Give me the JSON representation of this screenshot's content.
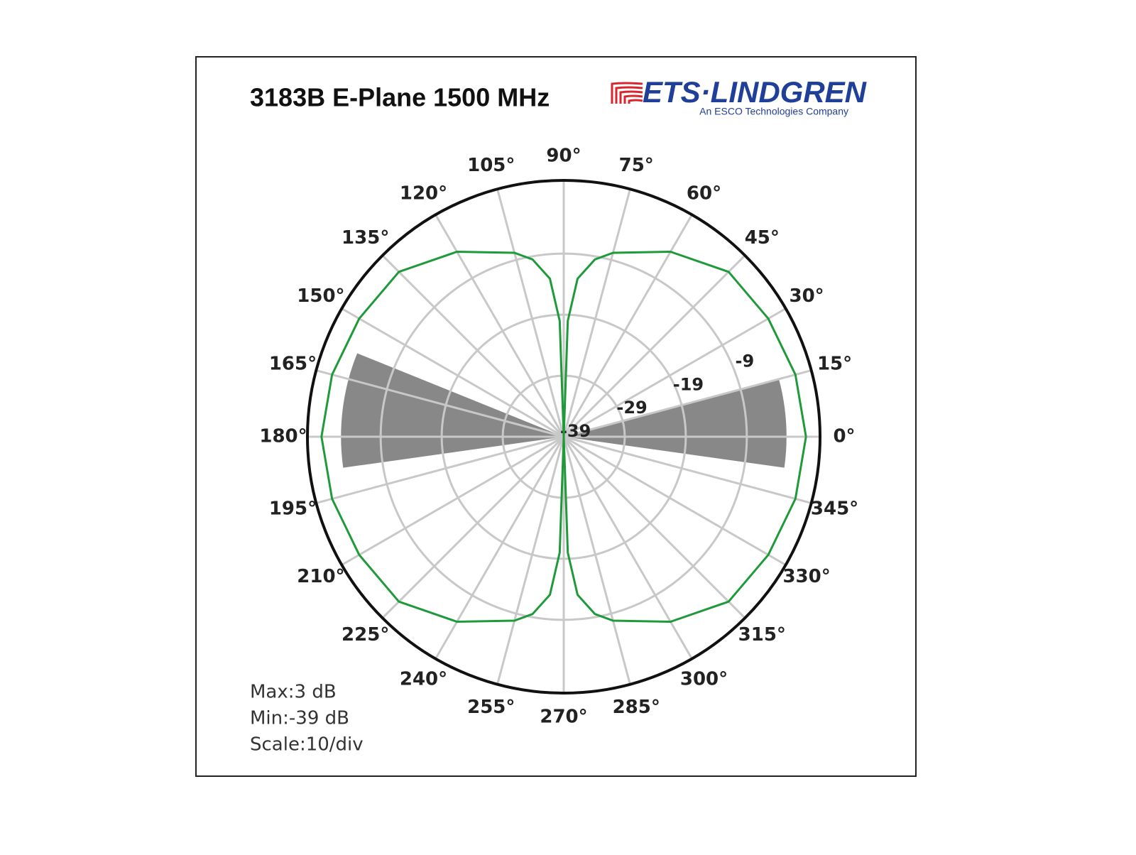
{
  "chart_data": {
    "type": "polar",
    "title": "3183B E-Plane 1500 MHz",
    "logo": {
      "name": "ETS·LINDGREN",
      "tagline": "An ESCO Technologies Company"
    },
    "notes": [
      "Max:3 dB",
      "Min:-39 dB",
      "Scale:10/div"
    ],
    "rlim": [
      -39,
      3
    ],
    "yticks": [
      -39,
      -29,
      -19,
      -9
    ],
    "xticks": [
      {
        "value": 0,
        "label": "0°"
      },
      {
        "value": 15,
        "label": "15°"
      },
      {
        "value": 30,
        "label": "30°"
      },
      {
        "value": 45,
        "label": "45°"
      },
      {
        "value": 60,
        "label": "60°"
      },
      {
        "value": 75,
        "label": "75°"
      },
      {
        "value": 90,
        "label": "90°"
      },
      {
        "value": 105,
        "label": "105°"
      },
      {
        "value": 120,
        "label": "120°"
      },
      {
        "value": 135,
        "label": "135°"
      },
      {
        "value": 150,
        "label": "150°"
      },
      {
        "value": 165,
        "label": "165°"
      },
      {
        "value": 180,
        "label": "180°"
      },
      {
        "value": 195,
        "label": "195°"
      },
      {
        "value": 210,
        "label": "210°"
      },
      {
        "value": 225,
        "label": "225°"
      },
      {
        "value": 240,
        "label": "240°"
      },
      {
        "value": 255,
        "label": "255°"
      },
      {
        "value": 270,
        "label": "270°"
      },
      {
        "value": 285,
        "label": "285°"
      },
      {
        "value": 300,
        "label": "300°"
      },
      {
        "value": 315,
        "label": "315°"
      },
      {
        "value": 330,
        "label": "330°"
      },
      {
        "value": 345,
        "label": "345°"
      }
    ],
    "grid": true,
    "sectors": {
      "color": "#888888",
      "start": [
        -8,
        158
      ],
      "end": [
        15,
        188
      ],
      "values": [
        -2.5,
        -2.5
      ]
    },
    "series": [
      {
        "color": "#1f9a3a",
        "x": [
          0,
          15,
          30,
          45,
          60,
          75,
          80,
          85,
          88,
          90,
          92,
          95,
          100,
          105,
          120,
          135,
          150,
          165,
          180,
          195,
          210,
          225,
          240,
          255,
          260,
          265,
          268,
          270,
          272,
          275,
          280,
          285,
          300,
          315,
          330,
          345,
          360
        ],
        "values": [
          0.7,
          0.3,
          -0.3,
          -0.8,
          -4.0,
          -7.8,
          -9.5,
          -13,
          -20,
          -39,
          -20,
          -13,
          -9.5,
          -7.8,
          -4.0,
          -0.8,
          -0.3,
          0.3,
          0.7,
          0.3,
          -0.3,
          -0.8,
          -4.0,
          -7.8,
          -9.5,
          -13,
          -20,
          -39,
          -20,
          -13,
          -9.5,
          -7.8,
          -4.0,
          -0.8,
          -0.3,
          0.3,
          0.7
        ]
      }
    ]
  }
}
